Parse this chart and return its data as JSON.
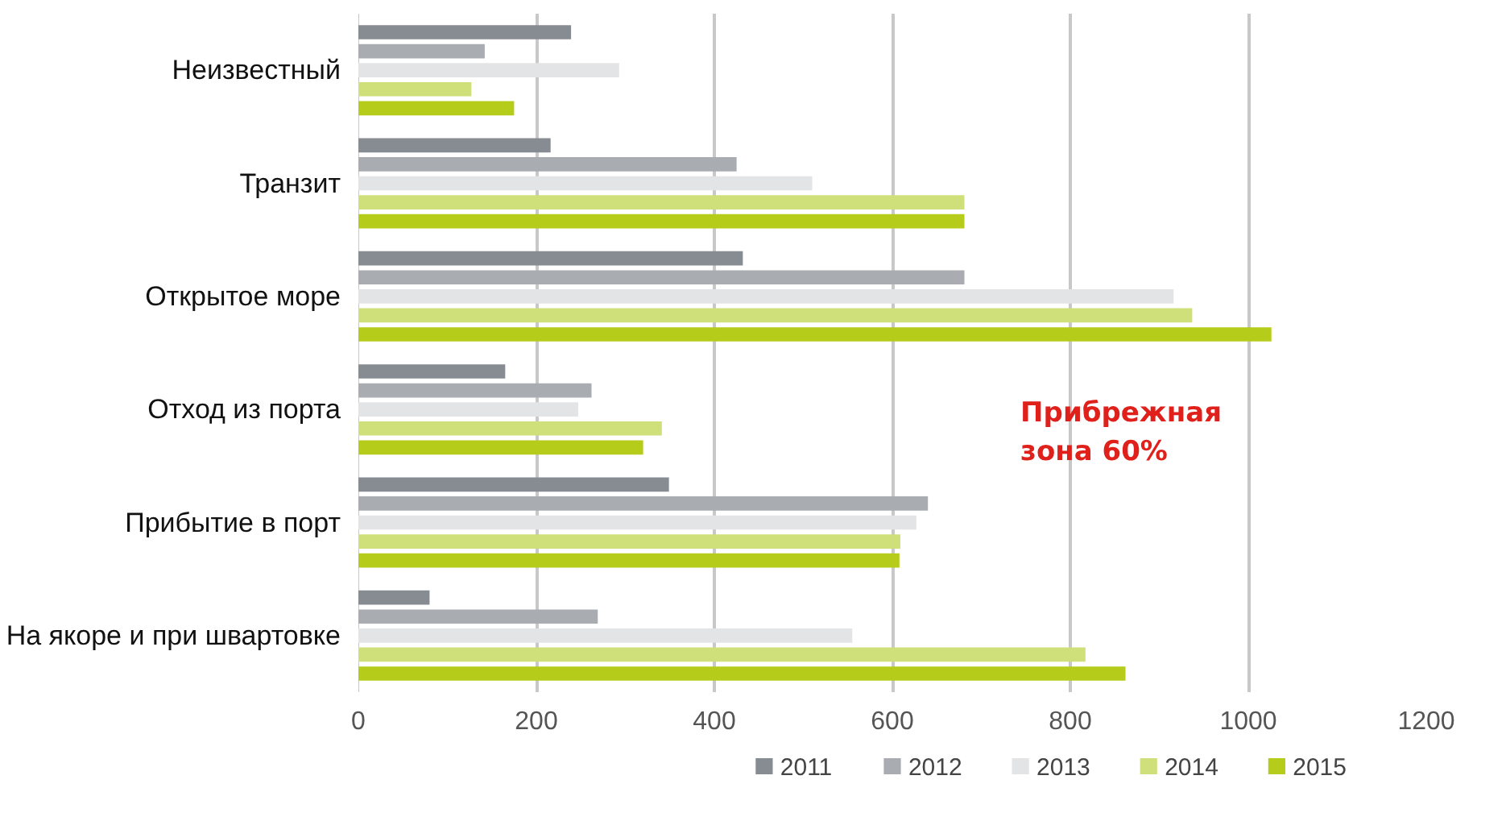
{
  "chart_data": {
    "type": "bar",
    "orientation": "horizontal",
    "categories": [
      "Неизвестный",
      "Транзит",
      "Открытое море",
      "Отход из порта",
      "Прибытие в порт",
      "На якоре и при швартовке"
    ],
    "series": [
      {
        "name": "2011",
        "color": "#878c93",
        "values": [
          239,
          216,
          432,
          165,
          349,
          80
        ]
      },
      {
        "name": "2012",
        "color": "#a9adb2",
        "values": [
          142,
          425,
          681,
          262,
          640,
          269
        ]
      },
      {
        "name": "2013",
        "color": "#e3e4e6",
        "values": [
          293,
          510,
          916,
          247,
          627,
          555
        ]
      },
      {
        "name": "2014",
        "color": "#cfdf7a",
        "values": [
          127,
          681,
          937,
          341,
          609,
          817
        ]
      },
      {
        "name": "2015",
        "color": "#b5cc1a",
        "values": [
          175,
          681,
          1026,
          320,
          608,
          862
        ]
      }
    ],
    "xlim": [
      0,
      1200
    ],
    "xticks": [
      0,
      200,
      400,
      600,
      800,
      1000,
      1200
    ],
    "grid": "x",
    "legend": "bottom",
    "annotations": [
      "Прибрежная\nзона  60%"
    ]
  }
}
